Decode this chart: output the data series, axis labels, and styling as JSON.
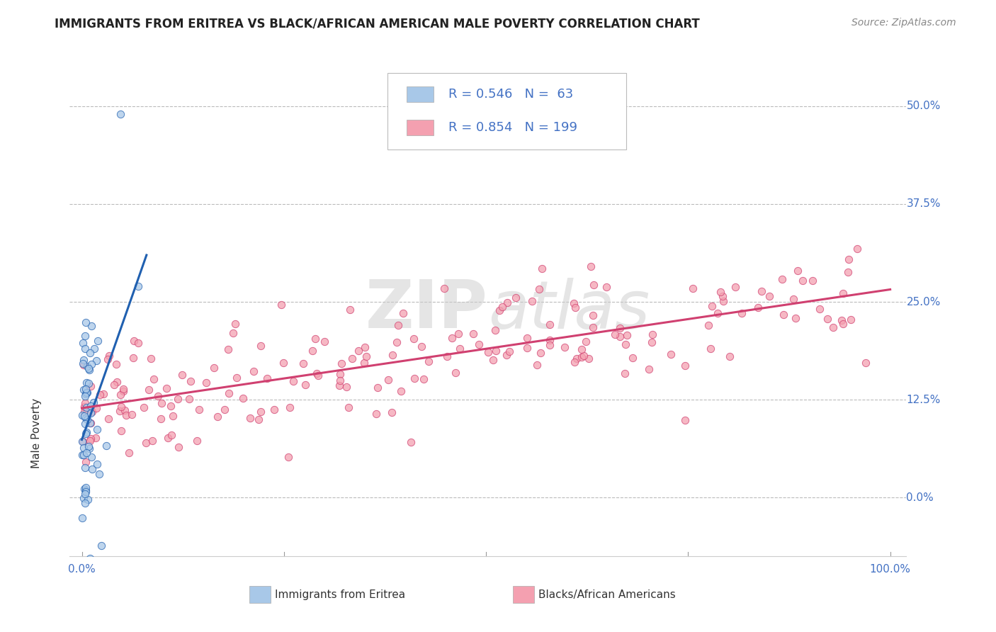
{
  "title": "IMMIGRANTS FROM ERITREA VS BLACK/AFRICAN AMERICAN MALE POVERTY CORRELATION CHART",
  "source_text": "Source: ZipAtlas.com",
  "ylabel": "Male Poverty",
  "legend_r1": "R = 0.546",
  "legend_n1": "N =  63",
  "legend_r2": "R = 0.854",
  "legend_n2": "N = 199",
  "blue_fill": "#a8c8e8",
  "pink_fill": "#f4a0b0",
  "line_blue": "#2060b0",
  "line_pink": "#d04070",
  "title_fontsize": 12,
  "watermark_text": "ZIPatlas",
  "background_color": "#ffffff",
  "grid_color": "#bbbbbb",
  "label_color": "#4472c4",
  "text_color": "#333333",
  "source_color": "#888888"
}
